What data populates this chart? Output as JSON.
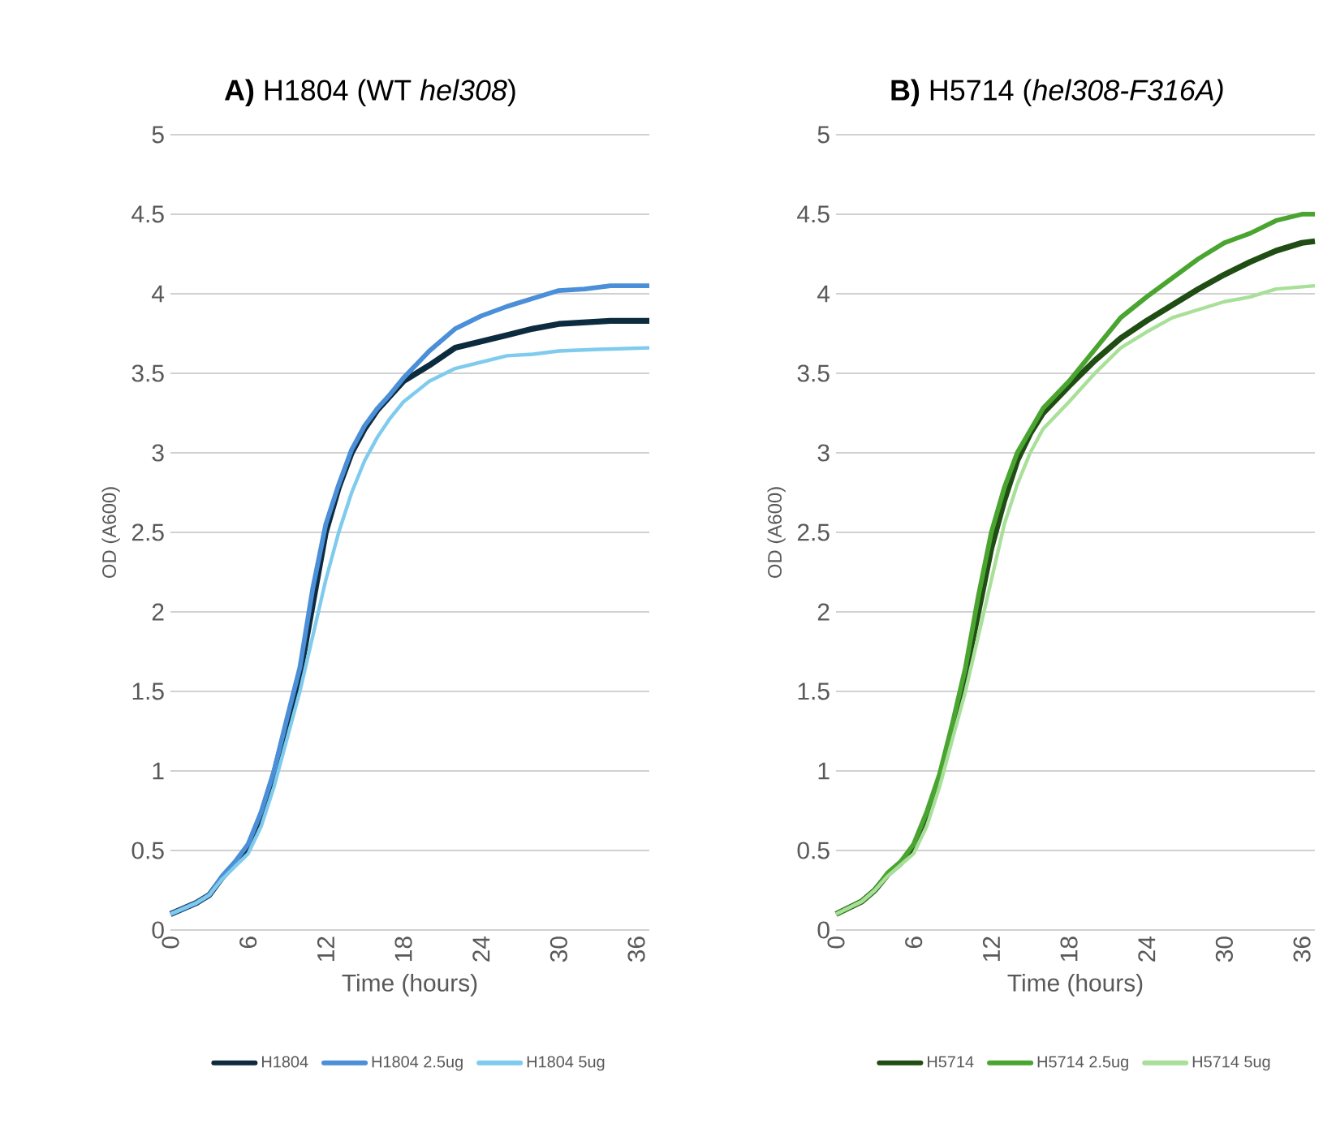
{
  "chart_data": [
    {
      "type": "line",
      "title": "**A)** H1804 (WT *hel308*)",
      "xlabel": "Time (hours)",
      "ylabel": "OD (A600)",
      "xlim": [
        0,
        37
      ],
      "xticks": [
        0,
        6,
        12,
        18,
        24,
        30,
        36
      ],
      "ylim": [
        0,
        5
      ],
      "yticks": [
        0,
        0.5,
        1,
        1.5,
        2,
        2.5,
        3,
        3.5,
        4,
        4.5,
        5
      ],
      "grid": "y",
      "legend": "bottom",
      "marker": "none",
      "line_style": "solid",
      "series": [
        {
          "name": "H1804",
          "color": "#0d2b3e",
          "x": [
            0,
            2,
            3,
            4,
            5,
            6,
            7,
            8,
            9,
            10,
            11,
            12,
            13,
            14,
            15,
            16,
            17,
            18,
            20,
            22,
            24,
            26,
            28,
            30,
            32,
            34,
            37
          ],
          "values": [
            0.1,
            0.17,
            0.22,
            0.33,
            0.42,
            0.52,
            0.72,
            0.98,
            1.3,
            1.6,
            2.05,
            2.5,
            2.78,
            3.0,
            3.15,
            3.27,
            3.36,
            3.45,
            3.55,
            3.66,
            3.7,
            3.74,
            3.78,
            3.81,
            3.82,
            3.83,
            3.83
          ]
        },
        {
          "name": "H1804 2.5ug",
          "color": "#4a8fd8",
          "x": [
            0,
            2,
            3,
            4,
            5,
            6,
            7,
            8,
            9,
            10,
            11,
            12,
            13,
            14,
            15,
            16,
            17,
            18,
            20,
            22,
            24,
            26,
            28,
            30,
            32,
            34,
            37
          ],
          "values": [
            0.1,
            0.17,
            0.22,
            0.34,
            0.43,
            0.54,
            0.74,
            1.0,
            1.33,
            1.65,
            2.15,
            2.55,
            2.8,
            3.02,
            3.17,
            3.28,
            3.37,
            3.47,
            3.64,
            3.78,
            3.86,
            3.92,
            3.97,
            4.02,
            4.03,
            4.05,
            4.05
          ]
        },
        {
          "name": "H1804 5ug",
          "color": "#7fcbee",
          "x": [
            0,
            2,
            3,
            4,
            5,
            6,
            7,
            8,
            9,
            10,
            11,
            12,
            13,
            14,
            15,
            16,
            17,
            18,
            20,
            22,
            24,
            26,
            28,
            30,
            33,
            37
          ],
          "values": [
            0.1,
            0.17,
            0.22,
            0.32,
            0.4,
            0.48,
            0.65,
            0.9,
            1.2,
            1.5,
            1.85,
            2.2,
            2.5,
            2.75,
            2.95,
            3.1,
            3.22,
            3.32,
            3.45,
            3.53,
            3.57,
            3.61,
            3.62,
            3.64,
            3.65,
            3.66
          ]
        }
      ]
    },
    {
      "type": "line",
      "title": "**B)** H5714 (*hel308-F316A)*",
      "xlabel": "Time (hours)",
      "ylabel": "OD (A600)",
      "xlim": [
        0,
        37
      ],
      "xticks": [
        0,
        6,
        12,
        18,
        24,
        30,
        36
      ],
      "ylim": [
        0,
        5
      ],
      "yticks": [
        0,
        0.5,
        1,
        1.5,
        2,
        2.5,
        3,
        3.5,
        4,
        4.5,
        5
      ],
      "grid": "y",
      "legend": "bottom",
      "marker": "none",
      "line_style": "solid",
      "series": [
        {
          "name": "H5714",
          "color": "#1f4d14",
          "x": [
            0,
            2,
            3,
            4,
            5,
            6,
            7,
            8,
            9,
            10,
            11,
            12,
            13,
            14,
            15,
            16,
            18,
            20,
            22,
            24,
            26,
            28,
            30,
            32,
            34,
            36,
            37
          ],
          "values": [
            0.1,
            0.18,
            0.25,
            0.35,
            0.42,
            0.52,
            0.72,
            0.95,
            1.25,
            1.6,
            2.0,
            2.4,
            2.7,
            2.95,
            3.12,
            3.25,
            3.42,
            3.58,
            3.72,
            3.83,
            3.93,
            4.03,
            4.12,
            4.2,
            4.27,
            4.32,
            4.33
          ]
        },
        {
          "name": "H5714 2.5ug",
          "color": "#4aa530",
          "x": [
            0,
            2,
            3,
            4,
            5,
            6,
            7,
            8,
            9,
            10,
            11,
            12,
            13,
            14,
            16,
            18,
            20,
            22,
            24,
            26,
            28,
            30,
            32,
            34,
            36,
            37
          ],
          "values": [
            0.1,
            0.18,
            0.25,
            0.36,
            0.43,
            0.54,
            0.74,
            0.98,
            1.3,
            1.65,
            2.1,
            2.5,
            2.78,
            3.0,
            3.28,
            3.45,
            3.65,
            3.85,
            3.98,
            4.1,
            4.22,
            4.32,
            4.38,
            4.46,
            4.5,
            4.5
          ]
        },
        {
          "name": "H5714 5ug",
          "color": "#a8e09a",
          "x": [
            0,
            2,
            3,
            4,
            5,
            6,
            7,
            8,
            9,
            10,
            11,
            12,
            13,
            14,
            15,
            16,
            18,
            20,
            22,
            24,
            26,
            28,
            30,
            32,
            34,
            37
          ],
          "values": [
            0.1,
            0.18,
            0.25,
            0.34,
            0.41,
            0.48,
            0.65,
            0.9,
            1.2,
            1.5,
            1.85,
            2.2,
            2.55,
            2.8,
            3.0,
            3.15,
            3.32,
            3.5,
            3.66,
            3.76,
            3.85,
            3.9,
            3.95,
            3.98,
            4.03,
            4.05
          ]
        }
      ]
    }
  ]
}
